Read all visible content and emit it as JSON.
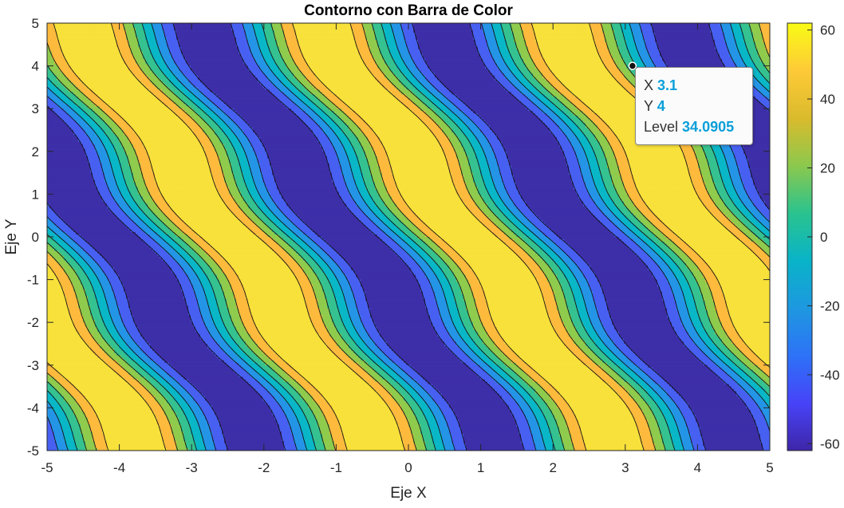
{
  "chart_data": {
    "type": "contour",
    "title": "Contorno con Barra de Color",
    "xlabel": "Eje X",
    "ylabel": "Eje Y",
    "xlim": [
      -5,
      5
    ],
    "ylim": [
      -5,
      5
    ],
    "xticks": [
      -5,
      -4,
      -3,
      -2,
      -1,
      0,
      1,
      2,
      3,
      4,
      5
    ],
    "yticks": [
      -5,
      -4,
      -3,
      -2,
      -1,
      0,
      1,
      2,
      3,
      4,
      5
    ],
    "colorbar": {
      "range": [
        -62,
        62
      ],
      "ticks": [
        -60,
        -40,
        -20,
        0,
        20,
        40,
        60
      ],
      "levels": [
        -62,
        -45,
        -30,
        -15,
        0,
        15,
        30,
        45,
        62
      ],
      "band_colors": [
        "#3d2fa8",
        "#4760f2",
        "#2495e6",
        "#09b7c7",
        "#35c290",
        "#8fcb4d",
        "#fdba3d",
        "#f7e13a"
      ]
    },
    "filled": true,
    "datatip": {
      "marker": [
        3.1,
        4
      ],
      "x_label": "X",
      "x_value": "3.1",
      "y_label": "Y",
      "y_value": "4",
      "level_label": "Level",
      "level_value": "34.0905"
    }
  }
}
